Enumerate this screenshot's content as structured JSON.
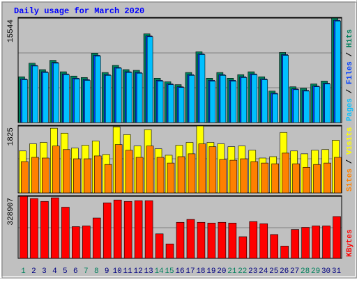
{
  "chart_data": {
    "type": "bar",
    "title": "Daily usage for March 2020",
    "categories": [
      "1",
      "2",
      "3",
      "4",
      "5",
      "6",
      "7",
      "8",
      "9",
      "10",
      "11",
      "12",
      "13",
      "14",
      "15",
      "16",
      "17",
      "18",
      "19",
      "20",
      "21",
      "22",
      "23",
      "24",
      "25",
      "26",
      "27",
      "28",
      "29",
      "30",
      "31"
    ],
    "category_colors": [
      "#00805c",
      "#000080",
      "#000080",
      "#000080",
      "#000080",
      "#000080",
      "#00805c",
      "#00805c",
      "#000080",
      "#000080",
      "#000080",
      "#000080",
      "#000080",
      "#00805c",
      "#00805c",
      "#000080",
      "#000080",
      "#000080",
      "#000080",
      "#000080",
      "#00805c",
      "#00805c",
      "#000080",
      "#000080",
      "#000080",
      "#000080",
      "#000080",
      "#00805c",
      "#00805c",
      "#000080",
      "#000080"
    ],
    "panels": [
      {
        "ylim": [
          0,
          15544
        ],
        "yticks": [
          15544
        ],
        "series": [
          {
            "name": "Hits",
            "color": "#00805c",
            "values": [
              6814,
              8836,
              7878,
              9262,
              7558,
              6920,
              6707,
              10326,
              7452,
              8517,
              7878,
              7772,
              13200,
              6600,
              6068,
              5642,
              7452,
              10540,
              6600,
              7452,
              6600,
              7132,
              7558,
              6814,
              4684,
              10433,
              5323,
              5110,
              5749,
              6175,
              15544
            ]
          },
          {
            "name": "Files",
            "color": "#0040ff",
            "values": [
              6494,
              8516,
              7558,
              8942,
              7238,
              6600,
              6387,
              10006,
              7132,
              8197,
              7558,
              7452,
              12880,
              6280,
              5748,
              5322,
              7132,
              10220,
              6280,
              7132,
              6280,
              6812,
              7238,
              6494,
              4364,
              10113,
              5003,
              4790,
              5429,
              5855,
              15224
            ]
          },
          {
            "name": "Pages",
            "color": "#00c0ff",
            "values": [
              6384,
              8406,
              7448,
              8832,
              7128,
              6490,
              6277,
              9896,
              7022,
              8087,
              7448,
              7342,
              12770,
              6170,
              5638,
              5212,
              7022,
              10110,
              6170,
              7022,
              6170,
              6702,
              7128,
              6384,
              4254,
              10003,
              4893,
              4680,
              5319,
              5745,
              15114
            ]
          }
        ]
      },
      {
        "ylim": [
          0,
          1825
        ],
        "yticks": [
          1825
        ],
        "series": [
          {
            "name": "Visits",
            "color": "#ffff00",
            "values": [
              1145,
              1339,
              1377,
              1765,
              1630,
              1222,
              1300,
              1416,
              1048,
              1804,
              1591,
              1280,
              1727,
              1203,
              1028,
              1300,
              1377,
              1825,
              1377,
              1339,
              1261,
              1280,
              1164,
              951,
              989,
              1649,
              1145,
              1067,
              1164,
              1183,
              1436
            ]
          },
          {
            "name": "Sites",
            "color": "#ff8000",
            "values": [
              854,
              970,
              951,
              1280,
              1183,
              931,
              931,
              1009,
              776,
              1319,
              1164,
              970,
              1280,
              970,
              815,
              989,
              1067,
              1339,
              1261,
              912,
              892,
              931,
              854,
              815,
              795,
              1086,
              795,
              698,
              776,
              815,
              970
            ]
          }
        ]
      },
      {
        "ylim": [
          0,
          328907
        ],
        "yticks": [
          328907
        ],
        "series": [
          {
            "name": "KBytes",
            "color": "#ff0000",
            "values": [
              328907,
              317475,
              302175,
              321300,
              271575,
              168300,
              172125,
              214200,
              294525,
              309825,
              302175,
              306000,
              306000,
              130050,
              76500,
              191250,
              206550,
              191250,
              187425,
              191250,
              187425,
              114750,
              195075,
              183600,
              126225,
              65025,
              153000,
              164475,
              172125,
              172125,
              221850
            ]
          }
        ]
      }
    ]
  }
}
